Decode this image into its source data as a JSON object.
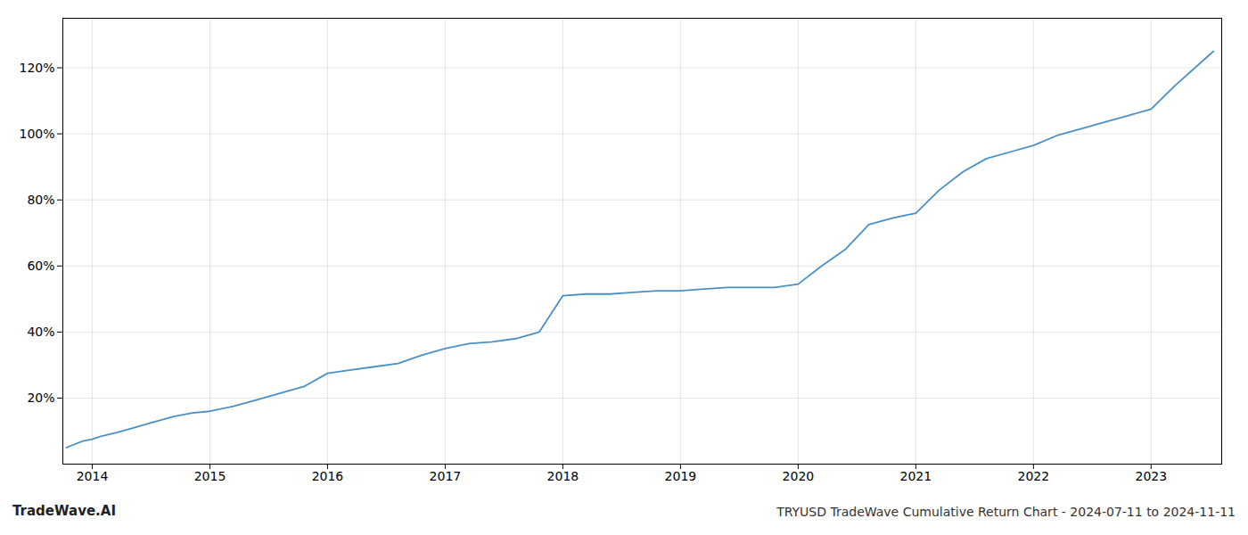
{
  "chart_data": {
    "type": "line",
    "title": "TRYUSD TradeWave Cumulative Return Chart - 2024-07-11 to 2024-11-11",
    "annotations": [
      "TradeWave.AI"
    ],
    "x": [
      2013.78,
      2013.85,
      2013.92,
      2014.0,
      2014.08,
      2014.2,
      2014.35,
      2014.5,
      2014.7,
      2014.85,
      2015.0,
      2015.2,
      2015.4,
      2015.6,
      2015.8,
      2016.0,
      2016.2,
      2016.4,
      2016.6,
      2016.8,
      2017.0,
      2017.2,
      2017.4,
      2017.6,
      2017.8,
      2018.0,
      2018.2,
      2018.4,
      2018.6,
      2018.8,
      2019.0,
      2019.2,
      2019.4,
      2019.6,
      2019.8,
      2020.0,
      2020.2,
      2020.4,
      2020.6,
      2020.8,
      2021.0,
      2021.2,
      2021.4,
      2021.6,
      2021.8,
      2022.0,
      2022.2,
      2022.4,
      2022.6,
      2022.8,
      2023.0,
      2023.2,
      2023.53
    ],
    "values": [
      5.0,
      6.0,
      7.0,
      7.5,
      8.5,
      9.5,
      11.0,
      12.5,
      14.5,
      15.5,
      16.0,
      17.5,
      19.5,
      21.5,
      23.5,
      27.5,
      28.5,
      29.5,
      30.5,
      33.0,
      35.0,
      36.5,
      37.0,
      38.0,
      40.0,
      51.0,
      51.5,
      51.5,
      52.0,
      52.5,
      52.5,
      53.0,
      53.5,
      53.5,
      53.5,
      54.5,
      60.0,
      65.0,
      72.5,
      74.5,
      76.0,
      83.0,
      88.5,
      92.5,
      94.5,
      96.5,
      99.5,
      101.5,
      103.5,
      105.5,
      107.5,
      114.5,
      125.0
    ],
    "color": "#4a90c4",
    "xlim": [
      2013.75,
      2023.6
    ],
    "xticks": [
      2014,
      2015,
      2016,
      2017,
      2018,
      2019,
      2020,
      2021,
      2022,
      2023
    ],
    "ylim": [
      0,
      135
    ],
    "yticks": [
      {
        "value": 20,
        "label": "20%"
      },
      {
        "value": 40,
        "label": "40%"
      },
      {
        "value": 60,
        "label": "60%"
      },
      {
        "value": 80,
        "label": "80%"
      },
      {
        "value": 100,
        "label": "100%"
      },
      {
        "value": 120,
        "label": "120%"
      }
    ],
    "grid": true
  }
}
